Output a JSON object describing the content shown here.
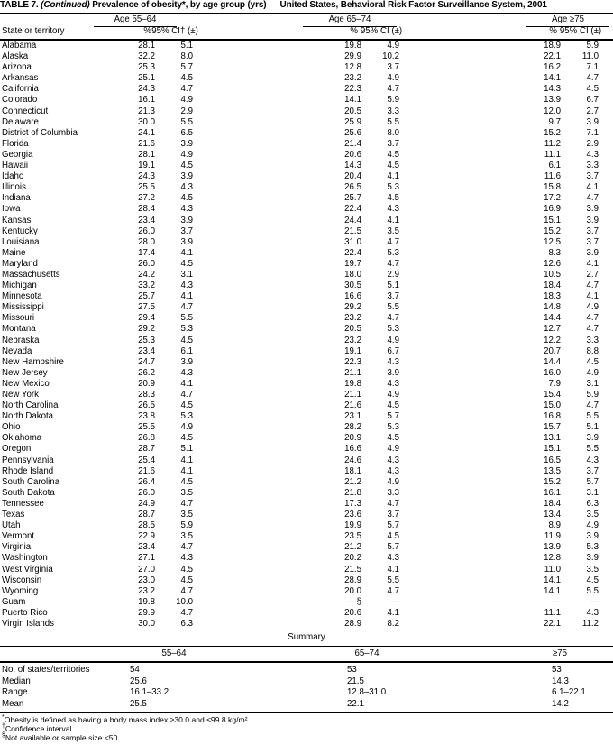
{
  "title": {
    "prefix": "TABLE 7. ",
    "continued": "(Continued)",
    "rest": " Prevalence of obesity*, by age group (yrs) — United States, Behavioral Risk Factor Surveillance System, 2001"
  },
  "header": {
    "state_col": "State or territory",
    "groups": [
      {
        "label": "Age 55–64",
        "pct": "%",
        "ci": "95% CI† (±)"
      },
      {
        "label": "Age 65–74",
        "pct": "%",
        "ci": "95% CI (±)"
      },
      {
        "label": "Age ≥75",
        "pct": "%",
        "ci": "95% CI (±)"
      }
    ]
  },
  "rows": [
    [
      "Alabama",
      "28.1",
      "5.1",
      "19.8",
      "4.9",
      "18.9",
      "5.9"
    ],
    [
      "Alaska",
      "32.2",
      "8.0",
      "29.9",
      "10.2",
      "22.1",
      "11.0"
    ],
    [
      "Arizona",
      "25.3",
      "5.7",
      "12.8",
      "3.7",
      "16.2",
      "7.1"
    ],
    [
      "Arkansas",
      "25.1",
      "4.5",
      "23.2",
      "4.9",
      "14.1",
      "4.7"
    ],
    [
      "California",
      "24.3",
      "4.7",
      "22.3",
      "4.7",
      "14.3",
      "4.5"
    ],
    [
      "Colorado",
      "16.1",
      "4.9",
      "14.1",
      "5.9",
      "13.9",
      "6.7"
    ],
    [
      "Connecticut",
      "21.3",
      "2.9",
      "20.5",
      "3.3",
      "12.0",
      "2.7"
    ],
    [
      "Delaware",
      "30.0",
      "5.5",
      "25.9",
      "5.5",
      "9.7",
      "3.9"
    ],
    [
      "District of Columbia",
      "24.1",
      "6.5",
      "25.6",
      "8.0",
      "15.2",
      "7.1"
    ],
    [
      "Florida",
      "21.6",
      "3.9",
      "21.4",
      "3.7",
      "11.2",
      "2.9"
    ],
    [
      "Georgia",
      "28.1",
      "4.9",
      "20.6",
      "4.5",
      "11.1",
      "4.3"
    ],
    [
      "Hawaii",
      "19.1",
      "4.5",
      "14.3",
      "4.5",
      "6.1",
      "3.3"
    ],
    [
      "Idaho",
      "24.3",
      "3.9",
      "20.4",
      "4.1",
      "11.6",
      "3.7"
    ],
    [
      "Illinois",
      "25.5",
      "4.3",
      "26.5",
      "5.3",
      "15.8",
      "4.1"
    ],
    [
      "Indiana",
      "27.2",
      "4.5",
      "25.7",
      "4.5",
      "17.2",
      "4.7"
    ],
    [
      "Iowa",
      "28.4",
      "4.3",
      "22.4",
      "4.3",
      "16.9",
      "3.9"
    ],
    [
      "Kansas",
      "23.4",
      "3.9",
      "24.4",
      "4.1",
      "15.1",
      "3.9"
    ],
    [
      "Kentucky",
      "26.0",
      "3.7",
      "21.5",
      "3.5",
      "15.2",
      "3.7"
    ],
    [
      "Louisiana",
      "28.0",
      "3.9",
      "31.0",
      "4.7",
      "12.5",
      "3.7"
    ],
    [
      "Maine",
      "17.4",
      "4.1",
      "22.4",
      "5.3",
      "8.3",
      "3.9"
    ],
    [
      "Maryland",
      "26.0",
      "4.5",
      "19.7",
      "4.7",
      "12.6",
      "4.1"
    ],
    [
      "Massachusetts",
      "24.2",
      "3.1",
      "18.0",
      "2.9",
      "10.5",
      "2.7"
    ],
    [
      "Michigan",
      "33.2",
      "4.3",
      "30.5",
      "5.1",
      "18.4",
      "4.7"
    ],
    [
      "Minnesota",
      "25.7",
      "4.1",
      "16.6",
      "3.7",
      "18.3",
      "4.1"
    ],
    [
      "Mississippi",
      "27.5",
      "4.7",
      "29.2",
      "5.5",
      "14.8",
      "4.9"
    ],
    [
      "Missouri",
      "29.4",
      "5.5",
      "23.2",
      "4.7",
      "14.4",
      "4.7"
    ],
    [
      "Montana",
      "29.2",
      "5.3",
      "20.5",
      "5.3",
      "12.7",
      "4.7"
    ],
    [
      "Nebraska",
      "25.3",
      "4.5",
      "23.2",
      "4.9",
      "12.2",
      "3.3"
    ],
    [
      "Nevada",
      "23.4",
      "6.1",
      "19.1",
      "6.7",
      "20.7",
      "8.8"
    ],
    [
      "New Hampshire",
      "24.7",
      "3.9",
      "22.3",
      "4.3",
      "14.4",
      "4.5"
    ],
    [
      "New Jersey",
      "26.2",
      "4.3",
      "21.1",
      "3.9",
      "16.0",
      "4.9"
    ],
    [
      "New Mexico",
      "20.9",
      "4.1",
      "19.8",
      "4.3",
      "7.9",
      "3.1"
    ],
    [
      "New York",
      "28.3",
      "4.7",
      "21.1",
      "4.9",
      "15.4",
      "5.9"
    ],
    [
      "North Carolina",
      "26.5",
      "4.5",
      "21.6",
      "4.5",
      "15.0",
      "4.7"
    ],
    [
      "North Dakota",
      "23.8",
      "5.3",
      "23.1",
      "5.7",
      "16.8",
      "5.5"
    ],
    [
      "Ohio",
      "25.5",
      "4.9",
      "28.2",
      "5.3",
      "15.7",
      "5.1"
    ],
    [
      "Oklahoma",
      "26.8",
      "4.5",
      "20.9",
      "4.5",
      "13.1",
      "3.9"
    ],
    [
      "Oregon",
      "28.7",
      "5.1",
      "16.6",
      "4.9",
      "15.1",
      "5.5"
    ],
    [
      "Pennsylvania",
      "25.4",
      "4.1",
      "24.6",
      "4.3",
      "16.5",
      "4.3"
    ],
    [
      "Rhode Island",
      "21.6",
      "4.1",
      "18.1",
      "4.3",
      "13.5",
      "3.7"
    ],
    [
      "South Carolina",
      "26.4",
      "4.5",
      "21.2",
      "4.9",
      "15.2",
      "5.7"
    ],
    [
      "South Dakota",
      "26.0",
      "3.5",
      "21.8",
      "3.3",
      "16.1",
      "3.1"
    ],
    [
      "Tennessee",
      "24.9",
      "4.7",
      "17.3",
      "4.7",
      "18.4",
      "6.3"
    ],
    [
      "Texas",
      "28.7",
      "3.5",
      "23.6",
      "3.7",
      "13.4",
      "3.5"
    ],
    [
      "Utah",
      "28.5",
      "5.9",
      "19.9",
      "5.7",
      "8.9",
      "4.9"
    ],
    [
      "Vermont",
      "22.9",
      "3.5",
      "23.5",
      "4.5",
      "11.9",
      "3.9"
    ],
    [
      "Virginia",
      "23.4",
      "4.7",
      "21.2",
      "5.7",
      "13.9",
      "5.3"
    ],
    [
      "Washington",
      "27.1",
      "4.3",
      "20.2",
      "4.3",
      "12.8",
      "3.9"
    ],
    [
      "West Virginia",
      "27.0",
      "4.5",
      "21.5",
      "4.1",
      "11.0",
      "3.5"
    ],
    [
      "Wisconsin",
      "23.0",
      "4.5",
      "28.9",
      "5.5",
      "14.1",
      "4.5"
    ],
    [
      "Wyoming",
      "23.2",
      "4.7",
      "20.0",
      "4.7",
      "14.1",
      "5.5"
    ],
    [
      "Guam",
      "19.8",
      "10.0",
      "—§",
      "—",
      "—",
      "—"
    ],
    [
      "Puerto Rico",
      "29.9",
      "4.7",
      "20.6",
      "4.1",
      "11.1",
      "4.3"
    ],
    [
      "Virgin Islands",
      "30.0",
      "6.3",
      "28.9",
      "8.2",
      "22.1",
      "11.2"
    ]
  ],
  "summary": {
    "title": "Summary",
    "col_headers": [
      "55–64",
      "65–74",
      "≥75"
    ],
    "rows": [
      [
        "No. of states/territories",
        "54",
        "53",
        "53"
      ],
      [
        "Median",
        "25.6",
        "21.5",
        "14.3"
      ],
      [
        "Range",
        "16.1–33.2",
        "12.8–31.0",
        "6.1–22.1"
      ],
      [
        "Mean",
        "25.5",
        "22.1",
        "14.2"
      ]
    ]
  },
  "footnotes": [
    {
      "marker": "*",
      "text": "Obesity is defined as having a body mass index ≥30.0 and ≤99.8 kg/m²."
    },
    {
      "marker": "†",
      "text": "Confidence interval."
    },
    {
      "marker": "§",
      "text": "Not available or sample size <50."
    }
  ]
}
